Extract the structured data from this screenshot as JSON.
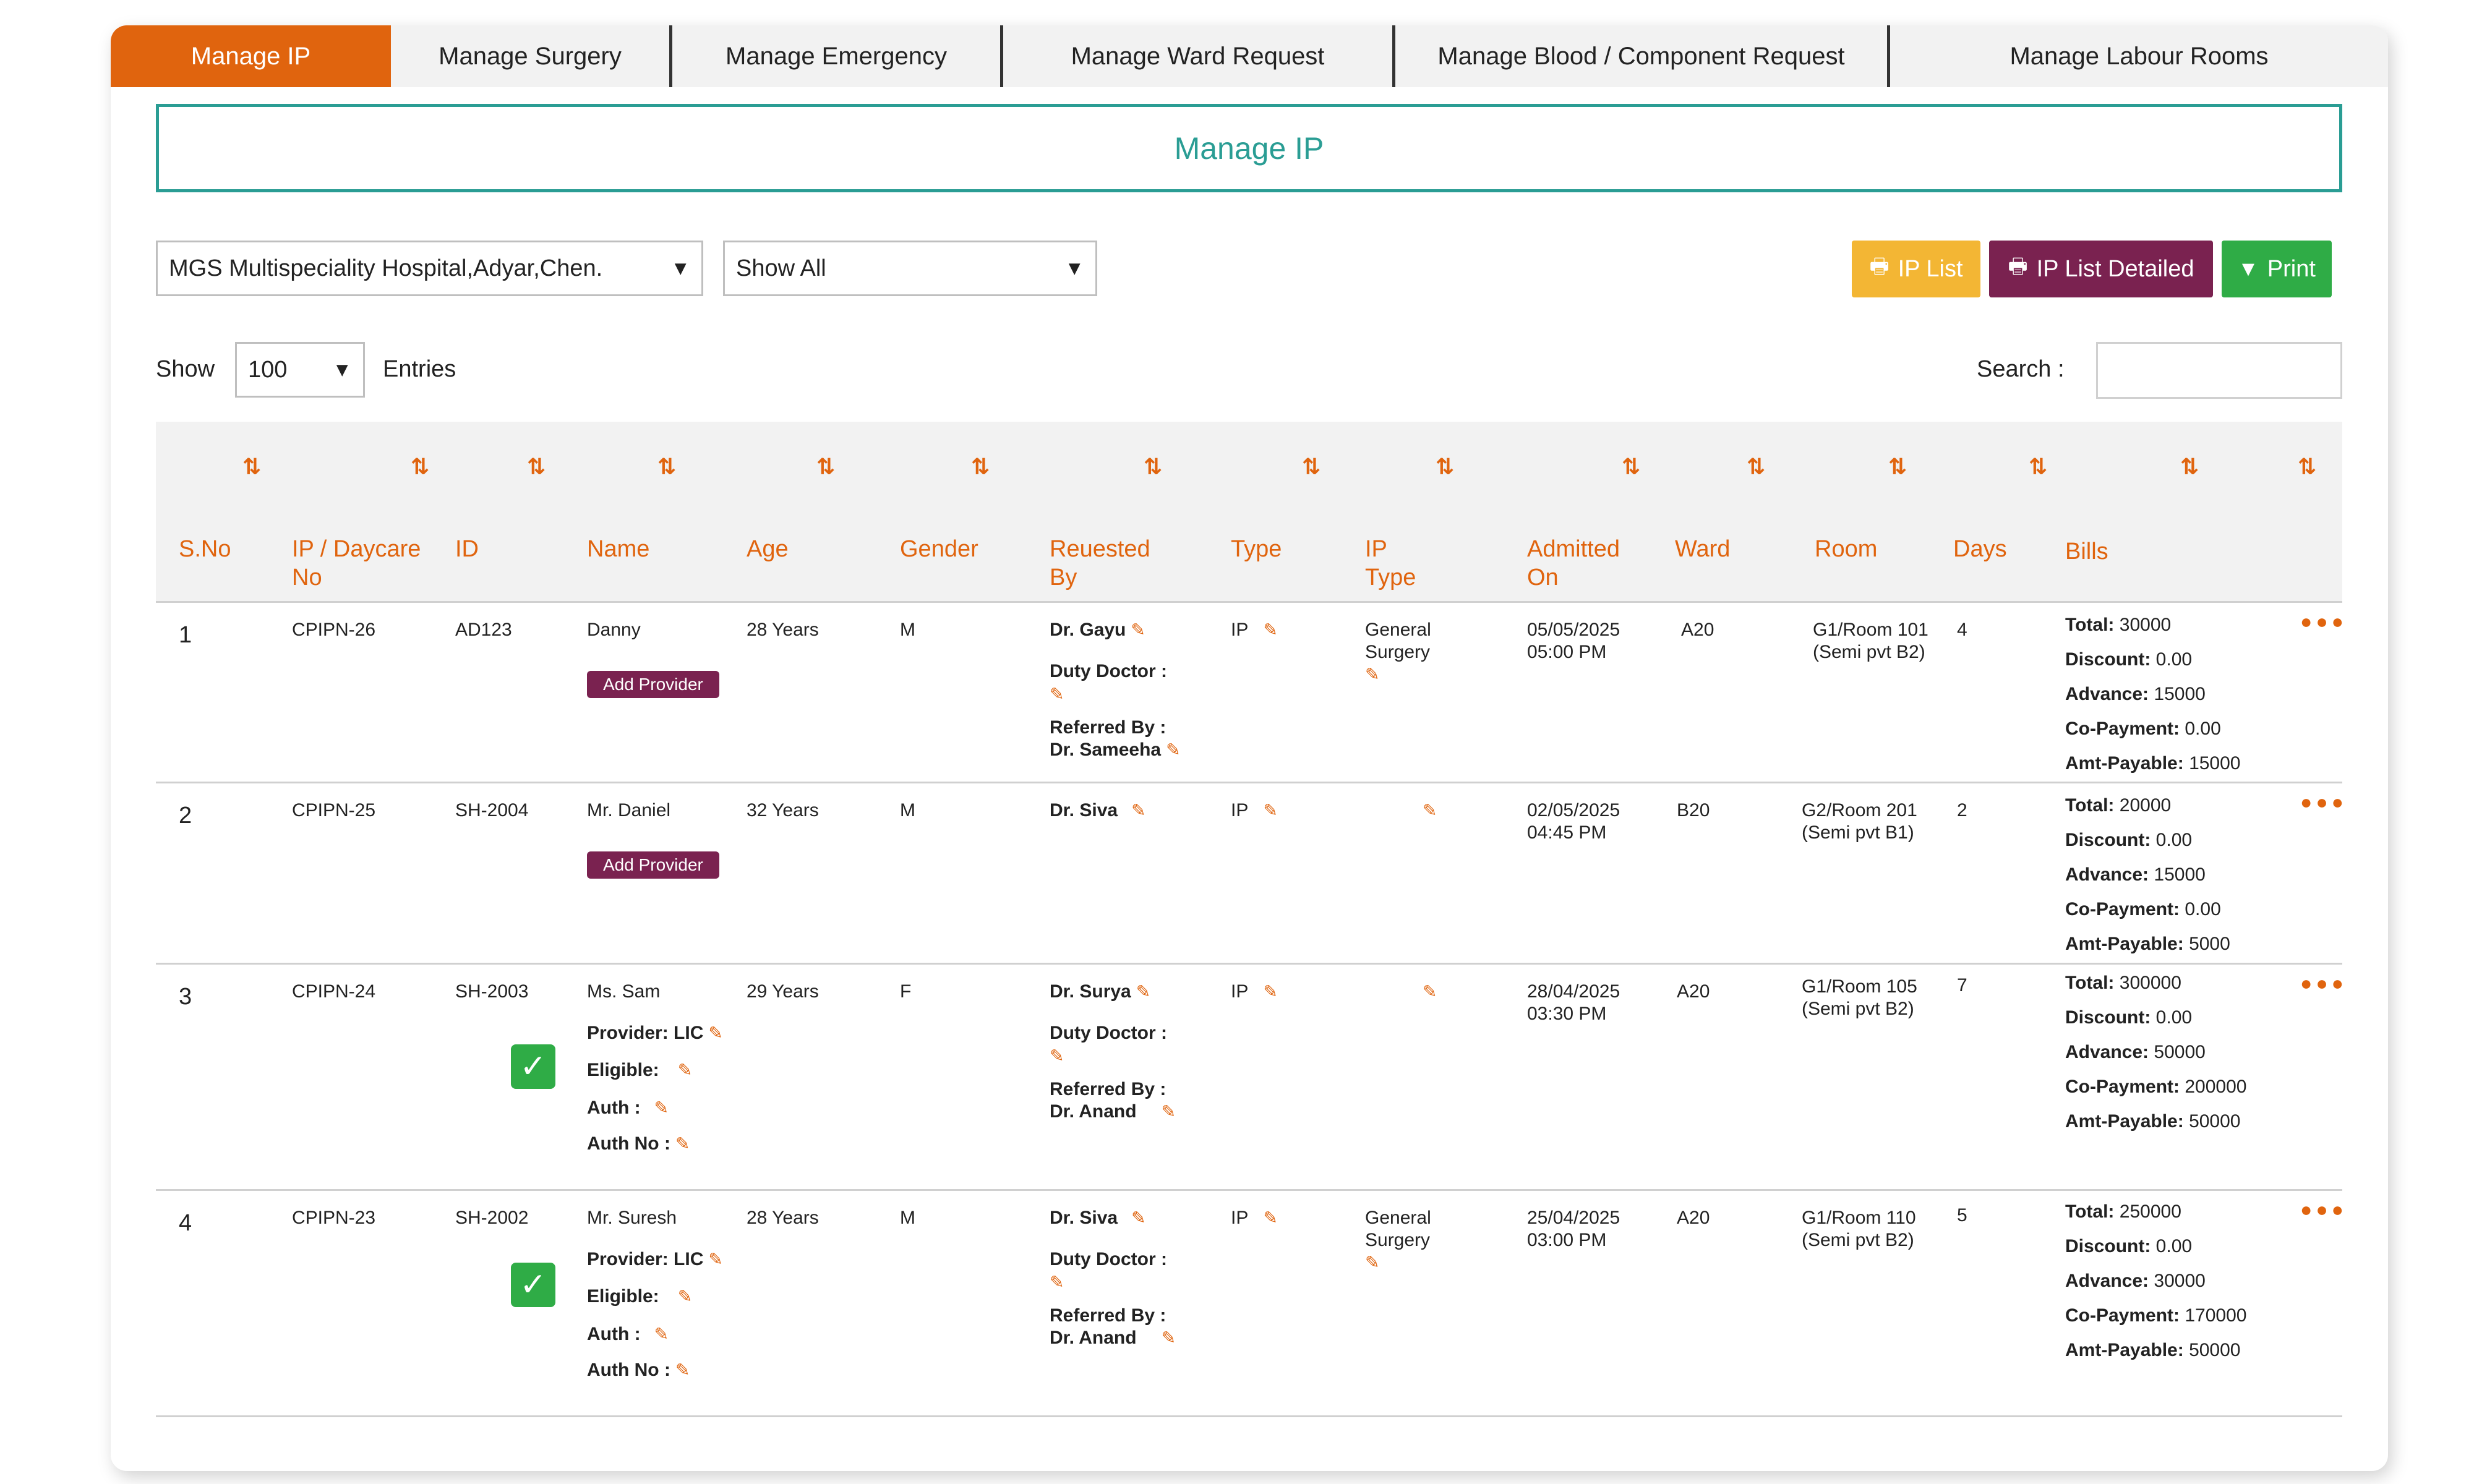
{
  "tabs": [
    {
      "label": "Manage IP",
      "active": true
    },
    {
      "label": "Manage Surgery"
    },
    {
      "label": "Manage Emergency"
    },
    {
      "label": "Manage Ward Request"
    },
    {
      "label": "Manage Blood / Component Request"
    },
    {
      "label": "Manage Labour Rooms"
    }
  ],
  "page_title": "Manage IP",
  "filters": {
    "hospital": "MGS Multispeciality Hospital,Adyar,Chen.",
    "show": "Show All"
  },
  "actions": {
    "ip_list": "IP List",
    "ip_list_detailed": "IP List Detailed",
    "print": "Print"
  },
  "entries": {
    "show_label": "Show",
    "value": "100",
    "entries_label": "Entries"
  },
  "search": {
    "label": "Search :",
    "value": ""
  },
  "columns": [
    "S.No",
    "IP / Daycare No",
    "ID",
    "Name",
    "Age",
    "Gender",
    "Reuested By",
    "Type",
    "IP Type",
    "Admitted On",
    "Ward",
    "Room",
    "Days",
    "Bills"
  ],
  "labels": {
    "add_provider": "Add Provider",
    "duty_doctor": "Duty Doctor :",
    "referred_by": "Referred By :",
    "provider": "Provider: LIC",
    "eligible": "Eligible:",
    "auth": "Auth :",
    "auth_no": "Auth No :",
    "total": "Total:",
    "discount": "Discount:",
    "advance": "Advance:",
    "copayment": "Co-Payment:",
    "amt_payable": "Amt-Payable:"
  },
  "rows": [
    {
      "sno": "1",
      "ip_no": "CPIPN-26",
      "id": "AD123",
      "name": "Danny",
      "age": "28 Years",
      "gender": "M",
      "requested_by": "Dr. Gayu",
      "referred_by": "Dr. Sameeha",
      "type": "IP",
      "ip_type": "General Surgery",
      "admitted_date": "05/05/2025",
      "admitted_time": "05:00 PM",
      "ward": "A20",
      "room": "G1/Room 101",
      "room_sub": "(Semi pvt B2)",
      "days": "4",
      "bills": {
        "total": "30000",
        "discount": "0.00",
        "advance": "15000",
        "copayment": "0.00",
        "amt_payable": "15000"
      }
    },
    {
      "sno": "2",
      "ip_no": "CPIPN-25",
      "id": "SH-2004",
      "name": "Mr. Daniel",
      "age": "32 Years",
      "gender": "M",
      "requested_by": "Dr. Siva",
      "type": "IP",
      "ip_type": "",
      "admitted_date": "02/05/2025",
      "admitted_time": "04:45 PM",
      "ward": "B20",
      "room": "G2/Room 201",
      "room_sub": "(Semi pvt B1)",
      "days": "2",
      "bills": {
        "total": "20000",
        "discount": "0.00",
        "advance": "15000",
        "copayment": "0.00",
        "amt_payable": "5000"
      }
    },
    {
      "sno": "3",
      "ip_no": "CPIPN-24",
      "id": "SH-2003",
      "name": "Ms. Sam",
      "age": "29 Years",
      "gender": "F",
      "requested_by": "Dr. Surya",
      "referred_by": "Dr. Anand",
      "type": "IP",
      "ip_type": "",
      "admitted_date": "28/04/2025",
      "admitted_time": "03:30 PM",
      "ward": "A20",
      "room": "G1/Room 105",
      "room_sub": "(Semi pvt B2)",
      "days": "7",
      "bills": {
        "total": "300000",
        "discount": "0.00",
        "advance": "50000",
        "copayment": "200000",
        "amt_payable": "50000"
      }
    },
    {
      "sno": "4",
      "ip_no": "CPIPN-23",
      "id": "SH-2002",
      "name": "Mr. Suresh",
      "age": "28 Years",
      "gender": "M",
      "requested_by": "Dr. Siva",
      "referred_by": "Dr. Anand",
      "type": "IP",
      "ip_type": "General Surgery",
      "admitted_date": "25/04/2025",
      "admitted_time": "03:00 PM",
      "ward": "A20",
      "room": "G1/Room 110",
      "room_sub": "(Semi pvt B2)",
      "days": "5",
      "bills": {
        "total": "250000",
        "discount": "0.00",
        "advance": "30000",
        "copayment": "170000",
        "amt_payable": "50000"
      }
    }
  ],
  "colors": {
    "accent": "#e0640e",
    "teal": "#2a9d94",
    "purple": "#7a2250",
    "yellow": "#f3b634",
    "green": "#2fac46"
  }
}
